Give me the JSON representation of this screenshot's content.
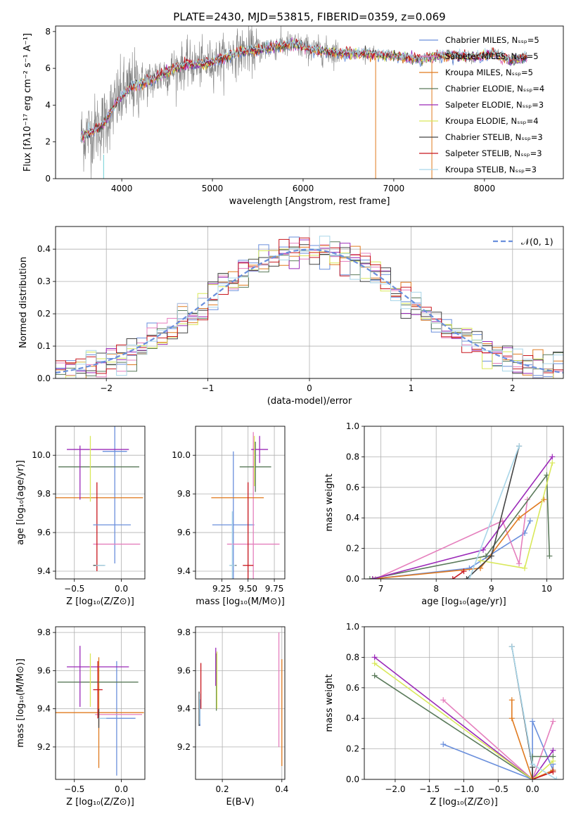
{
  "figure_title": "PLATE=2430, MJD=53815, FIBERID=0359, z=0.069",
  "colors": {
    "series": [
      "#6a8fdc",
      "#e57fbd",
      "#e07a1f",
      "#5a7a5a",
      "#9b29b8",
      "#d9e85a",
      "#444444",
      "#c8161d",
      "#a9d6e9"
    ],
    "gray": "#808080",
    "teal": "#6fd0d6"
  },
  "chart_data": [
    {
      "id": "spectrum",
      "type": "line",
      "title": "PLATE=2430, MJD=53815, FIBERID=0359, z=0.069",
      "xlabel": "wavelength [Angstrom, rest frame]",
      "ylabel": "Flux [fλ10⁻¹⁷ erg cm⁻² s⁻¹ A⁻¹]",
      "xlim": [
        3270,
        8870
      ],
      "ylim": [
        0,
        8.3
      ],
      "xticks": [
        4000,
        5000,
        6000,
        7000,
        8000
      ],
      "yticks": [
        0,
        2,
        4,
        6,
        8
      ],
      "grid": false,
      "legend_position": "top-right",
      "continuum": [
        [
          3550,
          2.3
        ],
        [
          3650,
          2.5
        ],
        [
          3800,
          3.0
        ],
        [
          3950,
          4.2
        ],
        [
          4100,
          5.0
        ],
        [
          4300,
          5.3
        ],
        [
          4500,
          5.8
        ],
        [
          4700,
          6.2
        ],
        [
          4900,
          6.2
        ],
        [
          5100,
          6.5
        ],
        [
          5300,
          6.9
        ],
        [
          5500,
          7.0
        ],
        [
          5700,
          7.2
        ],
        [
          5900,
          7.3
        ],
        [
          6100,
          7.0
        ],
        [
          6300,
          6.9
        ],
        [
          6500,
          6.8
        ],
        [
          6700,
          6.8
        ],
        [
          6900,
          6.7
        ],
        [
          7100,
          6.6
        ],
        [
          7300,
          6.5
        ],
        [
          7500,
          6.7
        ],
        [
          7700,
          6.7
        ],
        [
          7900,
          6.6
        ],
        [
          8100,
          6.8
        ],
        [
          8300,
          6.4
        ],
        [
          8450,
          6.6
        ]
      ],
      "series": [
        {
          "name": "Chabrier MILES, Nₛₛₚ=5"
        },
        {
          "name": "Salpeter MILES, Nₛₛₚ=5"
        },
        {
          "name": "Kroupa MILES, Nₛₛₚ=5"
        },
        {
          "name": "Chabrier ELODIE, Nₛₛₚ=4"
        },
        {
          "name": "Salpeter ELODIE, Nₛₛₚ=3"
        },
        {
          "name": "Kroupa ELODIE, Nₛₛₚ=4"
        },
        {
          "name": "Chabrier STELIB, Nₛₛₚ=3"
        },
        {
          "name": "Salpeter STELIB, Nₛₛₚ=3"
        },
        {
          "name": "Kroupa STELIB, Nₛₛₚ=3"
        }
      ]
    },
    {
      "id": "residuals",
      "type": "histogram",
      "xlabel": "(data-model)/error",
      "ylabel": "Normed distribution",
      "xlim": [
        -2.5,
        2.5
      ],
      "ylim": [
        0,
        0.47
      ],
      "xticks": [
        -2,
        -1,
        0,
        1,
        2
      ],
      "yticks": [
        0.0,
        0.1,
        0.2,
        0.3,
        0.4
      ],
      "grid": true,
      "legend_position": "top-right",
      "reference_curve": {
        "name": "𝒩(0, 1)",
        "mean": 0,
        "sigma": 1
      },
      "bin_width": 0.1
    },
    {
      "id": "age-vs-Z",
      "type": "errorbar",
      "xlabel": "Z [log₁₀(Z/Z⊙)]",
      "ylabel": "age  [log₁₀(age/yr)]",
      "xlim": [
        -0.7,
        0.25
      ],
      "ylim": [
        9.36,
        10.15
      ],
      "xticks": [
        -0.5,
        0.0
      ],
      "yticks": [
        9.4,
        9.6,
        9.8,
        10.0
      ],
      "grid": true,
      "points": [
        {
          "x": -0.07,
          "y": 10.02,
          "xerr": 0.13,
          "yerr": 0.58,
          "c": 0
        },
        {
          "x": -0.05,
          "y": 9.54,
          "xerr": 0.25,
          "yerr": 0.0,
          "c": 1
        },
        {
          "x": -0.25,
          "y": 9.78,
          "xerr": 0.48,
          "yerr": 0.0,
          "c": 2
        },
        {
          "x": -0.24,
          "y": 9.94,
          "xerr": 0.43,
          "yerr": 0.0,
          "c": 3
        },
        {
          "x": -0.25,
          "y": 10.03,
          "xerr": 0.33,
          "yerr": 0.0,
          "c": 4
        },
        {
          "x": -0.44,
          "y": 9.91,
          "xerr": 0.0,
          "yerr": 0.14,
          "c": 4
        },
        {
          "x": -0.33,
          "y": 9.93,
          "xerr": 0.0,
          "yerr": 0.17,
          "c": 5
        },
        {
          "x": -0.24,
          "y": 9.43,
          "xerr": 0.0,
          "yerr": 0.0,
          "c": 6
        },
        {
          "x": -0.26,
          "y": 9.63,
          "xerr": 0.0,
          "yerr": 0.23,
          "c": 7
        },
        {
          "x": -0.22,
          "y": 9.43,
          "xerr": 0.05,
          "yerr": 0.0,
          "c": 8
        },
        {
          "x": -0.1,
          "y": 9.64,
          "xerr": 0.2,
          "yerr": 0.0,
          "c": 0
        }
      ]
    },
    {
      "id": "age-vs-mass",
      "type": "errorbar",
      "xlabel": "mass [log₁₀(M/M⊙)]",
      "ylabel": "",
      "xlim": [
        9.0,
        9.85
      ],
      "ylim": [
        9.36,
        10.15
      ],
      "xticks": [
        9.25,
        9.5,
        9.75
      ],
      "yticks": [
        9.4,
        9.6,
        9.8,
        10.0
      ],
      "grid": true,
      "points": [
        {
          "x": 9.36,
          "y": 9.64,
          "xerr": 0.2,
          "yerr": 0.38,
          "c": 0
        },
        {
          "x": 9.55,
          "y": 9.54,
          "xerr": 0.25,
          "yerr": 0.58,
          "c": 1
        },
        {
          "x": 9.4,
          "y": 9.78,
          "xerr": 0.25,
          "yerr": 0.0,
          "c": 2
        },
        {
          "x": 9.57,
          "y": 9.94,
          "xerr": 0.15,
          "yerr": 0.13,
          "c": 3
        },
        {
          "x": 9.61,
          "y": 10.03,
          "xerr": 0.08,
          "yerr": 0.07,
          "c": 4
        },
        {
          "x": 9.56,
          "y": 9.97,
          "xerr": 0.0,
          "yerr": 0.13,
          "c": 5
        },
        {
          "x": 9.36,
          "y": 9.43,
          "xerr": 0.03,
          "yerr": 0.0,
          "c": 6
        },
        {
          "x": 9.5,
          "y": 9.43,
          "xerr": 0.05,
          "yerr": 0.43,
          "c": 7
        },
        {
          "x": 9.35,
          "y": 9.43,
          "xerr": 0.03,
          "yerr": 0.28,
          "c": 8
        }
      ]
    },
    {
      "id": "weight-vs-age",
      "type": "line",
      "xlabel": "age  [log₁₀(age/yr)]",
      "ylabel": "mass weight",
      "xlim": [
        6.7,
        10.3
      ],
      "ylim": [
        0,
        1.0
      ],
      "xticks": [
        7,
        8,
        9,
        10
      ],
      "yticks": [
        0.0,
        0.2,
        0.4,
        0.6,
        0.8,
        1.0
      ],
      "grid": true,
      "series": [
        {
          "c": 0,
          "x": [
            6.85,
            8.6,
            9.6,
            9.7
          ],
          "y": [
            0.0,
            0.07,
            0.3,
            0.38
          ]
        },
        {
          "c": 1,
          "x": [
            6.9,
            9.2,
            9.5,
            9.65
          ],
          "y": [
            0.0,
            0.38,
            0.1,
            0.52
          ]
        },
        {
          "c": 2,
          "x": [
            6.85,
            8.8,
            9.5,
            9.95
          ],
          "y": [
            0.0,
            0.07,
            0.4,
            0.52
          ]
        },
        {
          "c": 3,
          "x": [
            6.8,
            8.9,
            10.0,
            10.05
          ],
          "y": [
            0.0,
            0.15,
            0.68,
            0.15
          ]
        },
        {
          "c": 4,
          "x": [
            6.85,
            8.85,
            10.1
          ],
          "y": [
            0.0,
            0.19,
            0.8
          ]
        },
        {
          "c": 5,
          "x": [
            8.8,
            9.6,
            10.1
          ],
          "y": [
            0.12,
            0.07,
            0.76
          ]
        },
        {
          "c": 6,
          "x": [
            8.55,
            9.0,
            9.5
          ],
          "y": [
            0.0,
            0.15,
            0.87
          ]
        },
        {
          "c": 7,
          "x": [
            8.3,
            8.5
          ],
          "y": [
            0.0,
            0.05
          ]
        },
        {
          "c": 8,
          "x": [
            8.6,
            9.5
          ],
          "y": [
            0.0,
            0.87
          ]
        }
      ]
    },
    {
      "id": "mass-vs-Z",
      "type": "errorbar",
      "xlabel": "Z [log₁₀(Z/Z⊙)]",
      "ylabel": "mass [log₁₀(M/M⊙)]",
      "xlim": [
        -0.7,
        0.25
      ],
      "ylim": [
        9.03,
        9.83
      ],
      "xticks": [
        -0.5,
        0.0
      ],
      "yticks": [
        9.2,
        9.4,
        9.6,
        9.8
      ],
      "grid": true,
      "points": [
        {
          "x": -0.05,
          "y": 9.35,
          "xerr": 0.2,
          "yerr": 0.3,
          "c": 0
        },
        {
          "x": -0.03,
          "y": 9.37,
          "xerr": 0.25,
          "yerr": 0.0,
          "c": 1
        },
        {
          "x": -0.24,
          "y": 9.38,
          "xerr": 0.48,
          "yerr": 0.29,
          "c": 2
        },
        {
          "x": -0.25,
          "y": 9.54,
          "xerr": 0.43,
          "yerr": 0.0,
          "c": 3
        },
        {
          "x": -0.25,
          "y": 9.62,
          "xerr": 0.33,
          "yerr": 0.0,
          "c": 4
        },
        {
          "x": -0.44,
          "y": 9.57,
          "xerr": 0.0,
          "yerr": 0.16,
          "c": 4
        },
        {
          "x": -0.33,
          "y": 9.55,
          "xerr": 0.0,
          "yerr": 0.14,
          "c": 5
        },
        {
          "x": -0.24,
          "y": 9.35,
          "xerr": 0.0,
          "yerr": 0.05,
          "c": 6
        },
        {
          "x": -0.25,
          "y": 9.5,
          "xerr": 0.05,
          "yerr": 0.15,
          "c": 7
        },
        {
          "x": -0.2,
          "y": 9.35,
          "xerr": 0.04,
          "yerr": 0.0,
          "c": 8
        }
      ]
    },
    {
      "id": "mass-vs-EBV",
      "type": "errorbar",
      "xlabel": "E(B-V)",
      "ylabel": "",
      "xlim": [
        0.11,
        0.41
      ],
      "ylim": [
        9.03,
        9.83
      ],
      "xticks": [
        0.2,
        0.4
      ],
      "yticks": [
        9.2,
        9.4,
        9.6,
        9.8
      ],
      "grid": true,
      "points": [
        {
          "x": 0.125,
          "y": 9.38,
          "xerr": 0,
          "yerr": 0.07,
          "c": 0
        },
        {
          "x": 0.128,
          "y": 9.52,
          "xerr": 0,
          "yerr": 0.12,
          "c": 7
        },
        {
          "x": 0.122,
          "y": 9.4,
          "xerr": 0,
          "yerr": 0.09,
          "c": 6
        },
        {
          "x": 0.124,
          "y": 9.4,
          "xerr": 0,
          "yerr": 0.08,
          "c": 8
        },
        {
          "x": 0.18,
          "y": 9.54,
          "xerr": 0,
          "yerr": 0.15,
          "c": 3
        },
        {
          "x": 0.178,
          "y": 9.62,
          "xerr": 0,
          "yerr": 0.1,
          "c": 4
        },
        {
          "x": 0.182,
          "y": 9.55,
          "xerr": 0,
          "yerr": 0.15,
          "c": 5
        },
        {
          "x": 0.39,
          "y": 9.5,
          "xerr": 0,
          "yerr": 0.3,
          "c": 1
        },
        {
          "x": 0.4,
          "y": 9.38,
          "xerr": 0,
          "yerr": 0.28,
          "c": 2
        }
      ]
    },
    {
      "id": "weight-vs-Z",
      "type": "line",
      "xlabel": "Z [log₁₀(Z/Z⊙)]",
      "ylabel": "mass weight",
      "xlim": [
        -2.45,
        0.45
      ],
      "ylim": [
        0,
        1.0
      ],
      "xticks": [
        -2.0,
        -1.5,
        -1.0,
        -0.5,
        0.0
      ],
      "yticks": [
        0.0,
        0.2,
        0.4,
        0.6,
        0.8,
        1.0
      ],
      "grid": true,
      "series": [
        {
          "c": 0,
          "x": [
            -1.3,
            0.0,
            0.0,
            0.3,
            0.3
          ],
          "y": [
            0.23,
            0.0,
            0.38,
            0.06,
            0.1
          ]
        },
        {
          "c": 1,
          "x": [
            -1.3,
            0.0,
            0.3
          ],
          "y": [
            0.52,
            0.0,
            0.38
          ]
        },
        {
          "c": 2,
          "x": [
            -0.3,
            -0.3,
            0.0,
            0.3
          ],
          "y": [
            0.52,
            0.4,
            0.0,
            0.06
          ]
        },
        {
          "c": 3,
          "x": [
            -2.3,
            0.0,
            0.0,
            0.3
          ],
          "y": [
            0.68,
            0.0,
            0.15,
            0.15
          ]
        },
        {
          "c": 4,
          "x": [
            -2.3,
            0.0,
            0.3
          ],
          "y": [
            0.8,
            0.0,
            0.19
          ]
        },
        {
          "c": 5,
          "x": [
            -2.3,
            0.0,
            0.3
          ],
          "y": [
            0.76,
            0.0,
            0.12
          ]
        },
        {
          "c": 6,
          "x": [
            -0.3,
            0.0,
            0.0
          ],
          "y": [
            0.87,
            0.08,
            0.0
          ]
        },
        {
          "c": 7,
          "x": [
            0.0,
            0.3
          ],
          "y": [
            0.0,
            0.05
          ]
        },
        {
          "c": 8,
          "x": [
            -0.3,
            0.0,
            0.35
          ],
          "y": [
            0.87,
            0.1,
            0.0
          ]
        }
      ]
    }
  ]
}
